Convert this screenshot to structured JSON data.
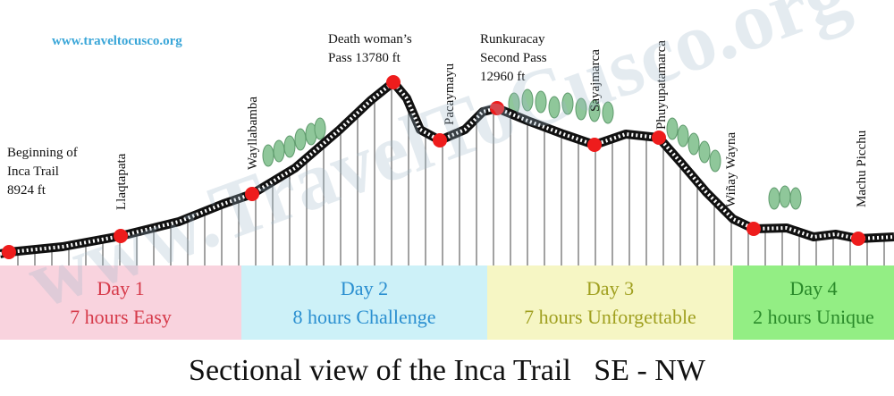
{
  "site": "www.traveltocusco.org",
  "watermark": "www.TravelToCusco.org",
  "points": [
    {
      "lines": [
        "Beginning of",
        "Inca Trail",
        "8924 ft"
      ]
    },
    {
      "lines": [
        "Llaqtapata"
      ]
    },
    {
      "lines": [
        "Wayllabamba"
      ]
    },
    {
      "lines": [
        "Death woman’s",
        "Pass 13780 ft"
      ]
    },
    {
      "lines": [
        "Pacaymayu"
      ]
    },
    {
      "lines": [
        "Runkuracay",
        "Second Pass",
        "12960 ft"
      ]
    },
    {
      "lines": [
        "Sayajmarca"
      ]
    },
    {
      "lines": [
        "Phuyupatamarca"
      ]
    },
    {
      "lines": [
        "Wiñay Wayna"
      ]
    },
    {
      "lines": [
        "Machu Picchu"
      ]
    }
  ],
  "days": [
    {
      "day": "Day 1",
      "desc": "7 hours Easy"
    },
    {
      "day": "Day 2",
      "desc": "8 hours Challenge"
    },
    {
      "day": "Day 3",
      "desc": "7 hours Unforgettable"
    },
    {
      "day": "Day 4",
      "desc": "2 hours Unique"
    }
  ],
  "title": "Sectional view of the Inca Trail   SE - NW"
}
